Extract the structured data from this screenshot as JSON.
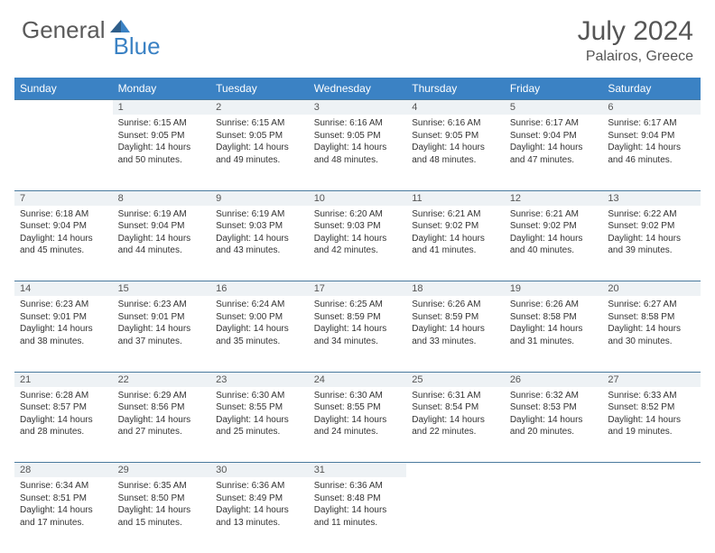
{
  "logo": {
    "part1": "General",
    "part2": "Blue"
  },
  "title": "July 2024",
  "location": "Palairos, Greece",
  "colors": {
    "header_bg": "#3b82c4",
    "header_text": "#ffffff",
    "daynum_bg": "#eef2f5",
    "row_border": "#4a7a9e",
    "body_text": "#333333",
    "logo_gray": "#5a5a5a",
    "logo_blue": "#3b82c4"
  },
  "weekdays": [
    "Sunday",
    "Monday",
    "Tuesday",
    "Wednesday",
    "Thursday",
    "Friday",
    "Saturday"
  ],
  "weeks": [
    {
      "nums": [
        "",
        "1",
        "2",
        "3",
        "4",
        "5",
        "6"
      ],
      "cells": [
        null,
        {
          "sr": "Sunrise: 6:15 AM",
          "ss": "Sunset: 9:05 PM",
          "dl": "Daylight: 14 hours and 50 minutes."
        },
        {
          "sr": "Sunrise: 6:15 AM",
          "ss": "Sunset: 9:05 PM",
          "dl": "Daylight: 14 hours and 49 minutes."
        },
        {
          "sr": "Sunrise: 6:16 AM",
          "ss": "Sunset: 9:05 PM",
          "dl": "Daylight: 14 hours and 48 minutes."
        },
        {
          "sr": "Sunrise: 6:16 AM",
          "ss": "Sunset: 9:05 PM",
          "dl": "Daylight: 14 hours and 48 minutes."
        },
        {
          "sr": "Sunrise: 6:17 AM",
          "ss": "Sunset: 9:04 PM",
          "dl": "Daylight: 14 hours and 47 minutes."
        },
        {
          "sr": "Sunrise: 6:17 AM",
          "ss": "Sunset: 9:04 PM",
          "dl": "Daylight: 14 hours and 46 minutes."
        }
      ]
    },
    {
      "nums": [
        "7",
        "8",
        "9",
        "10",
        "11",
        "12",
        "13"
      ],
      "cells": [
        {
          "sr": "Sunrise: 6:18 AM",
          "ss": "Sunset: 9:04 PM",
          "dl": "Daylight: 14 hours and 45 minutes."
        },
        {
          "sr": "Sunrise: 6:19 AM",
          "ss": "Sunset: 9:04 PM",
          "dl": "Daylight: 14 hours and 44 minutes."
        },
        {
          "sr": "Sunrise: 6:19 AM",
          "ss": "Sunset: 9:03 PM",
          "dl": "Daylight: 14 hours and 43 minutes."
        },
        {
          "sr": "Sunrise: 6:20 AM",
          "ss": "Sunset: 9:03 PM",
          "dl": "Daylight: 14 hours and 42 minutes."
        },
        {
          "sr": "Sunrise: 6:21 AM",
          "ss": "Sunset: 9:02 PM",
          "dl": "Daylight: 14 hours and 41 minutes."
        },
        {
          "sr": "Sunrise: 6:21 AM",
          "ss": "Sunset: 9:02 PM",
          "dl": "Daylight: 14 hours and 40 minutes."
        },
        {
          "sr": "Sunrise: 6:22 AM",
          "ss": "Sunset: 9:02 PM",
          "dl": "Daylight: 14 hours and 39 minutes."
        }
      ]
    },
    {
      "nums": [
        "14",
        "15",
        "16",
        "17",
        "18",
        "19",
        "20"
      ],
      "cells": [
        {
          "sr": "Sunrise: 6:23 AM",
          "ss": "Sunset: 9:01 PM",
          "dl": "Daylight: 14 hours and 38 minutes."
        },
        {
          "sr": "Sunrise: 6:23 AM",
          "ss": "Sunset: 9:01 PM",
          "dl": "Daylight: 14 hours and 37 minutes."
        },
        {
          "sr": "Sunrise: 6:24 AM",
          "ss": "Sunset: 9:00 PM",
          "dl": "Daylight: 14 hours and 35 minutes."
        },
        {
          "sr": "Sunrise: 6:25 AM",
          "ss": "Sunset: 8:59 PM",
          "dl": "Daylight: 14 hours and 34 minutes."
        },
        {
          "sr": "Sunrise: 6:26 AM",
          "ss": "Sunset: 8:59 PM",
          "dl": "Daylight: 14 hours and 33 minutes."
        },
        {
          "sr": "Sunrise: 6:26 AM",
          "ss": "Sunset: 8:58 PM",
          "dl": "Daylight: 14 hours and 31 minutes."
        },
        {
          "sr": "Sunrise: 6:27 AM",
          "ss": "Sunset: 8:58 PM",
          "dl": "Daylight: 14 hours and 30 minutes."
        }
      ]
    },
    {
      "nums": [
        "21",
        "22",
        "23",
        "24",
        "25",
        "26",
        "27"
      ],
      "cells": [
        {
          "sr": "Sunrise: 6:28 AM",
          "ss": "Sunset: 8:57 PM",
          "dl": "Daylight: 14 hours and 28 minutes."
        },
        {
          "sr": "Sunrise: 6:29 AM",
          "ss": "Sunset: 8:56 PM",
          "dl": "Daylight: 14 hours and 27 minutes."
        },
        {
          "sr": "Sunrise: 6:30 AM",
          "ss": "Sunset: 8:55 PM",
          "dl": "Daylight: 14 hours and 25 minutes."
        },
        {
          "sr": "Sunrise: 6:30 AM",
          "ss": "Sunset: 8:55 PM",
          "dl": "Daylight: 14 hours and 24 minutes."
        },
        {
          "sr": "Sunrise: 6:31 AM",
          "ss": "Sunset: 8:54 PM",
          "dl": "Daylight: 14 hours and 22 minutes."
        },
        {
          "sr": "Sunrise: 6:32 AM",
          "ss": "Sunset: 8:53 PM",
          "dl": "Daylight: 14 hours and 20 minutes."
        },
        {
          "sr": "Sunrise: 6:33 AM",
          "ss": "Sunset: 8:52 PM",
          "dl": "Daylight: 14 hours and 19 minutes."
        }
      ]
    },
    {
      "nums": [
        "28",
        "29",
        "30",
        "31",
        "",
        "",
        ""
      ],
      "cells": [
        {
          "sr": "Sunrise: 6:34 AM",
          "ss": "Sunset: 8:51 PM",
          "dl": "Daylight: 14 hours and 17 minutes."
        },
        {
          "sr": "Sunrise: 6:35 AM",
          "ss": "Sunset: 8:50 PM",
          "dl": "Daylight: 14 hours and 15 minutes."
        },
        {
          "sr": "Sunrise: 6:36 AM",
          "ss": "Sunset: 8:49 PM",
          "dl": "Daylight: 14 hours and 13 minutes."
        },
        {
          "sr": "Sunrise: 6:36 AM",
          "ss": "Sunset: 8:48 PM",
          "dl": "Daylight: 14 hours and 11 minutes."
        },
        null,
        null,
        null
      ]
    }
  ]
}
